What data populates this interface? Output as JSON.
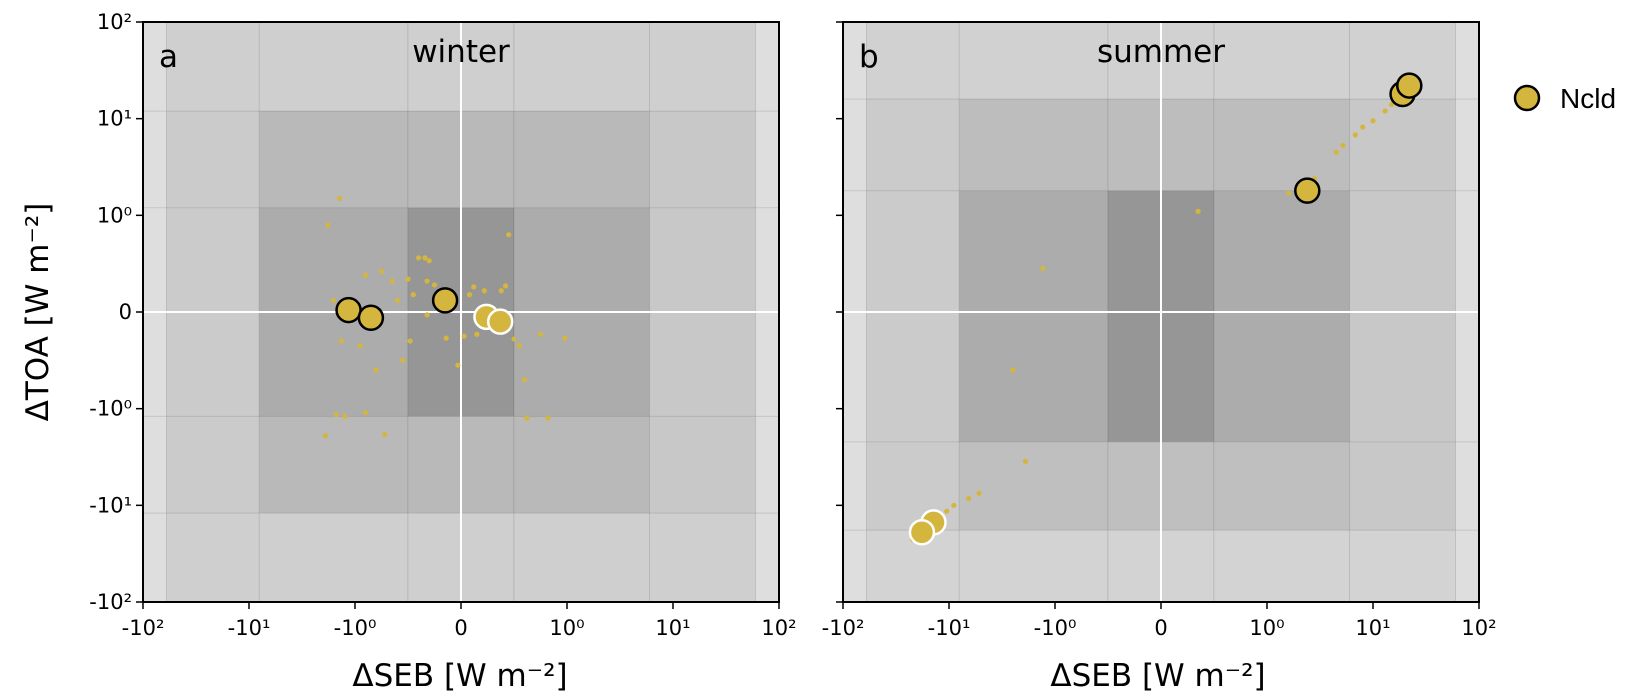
{
  "chart_data": [
    {
      "type": "scatter",
      "panel_letter": "a",
      "title": "winter",
      "xlabel": "ΔSEB [W m⁻²]",
      "ylabel": "ΔTOA [W m⁻²]",
      "xscale": "symlog",
      "yscale": "symlog",
      "xlim": [
        -100,
        100
      ],
      "ylim": [
        -100,
        100
      ],
      "x_ticks": [
        "-10²",
        "-10¹",
        "-10⁰",
        "0",
        "10⁰",
        "10¹",
        "10²"
      ],
      "y_ticks": [
        "10²",
        "10¹",
        "10⁰",
        "0",
        "-10⁰",
        "-10¹",
        "-10²"
      ],
      "background": "grey shading bands, darker toward 0",
      "zero_lines": true,
      "series": [
        {
          "name": "Ncld",
          "color": "#d4b63e",
          "large_points": [
            {
              "x": -1.15,
              "y": 0.02,
              "edge": "black"
            },
            {
              "x": -0.85,
              "y": -0.06,
              "edge": "black"
            },
            {
              "x": -0.15,
              "y": 0.12,
              "edge": "black"
            },
            {
              "x": 0.24,
              "y": -0.05,
              "edge": "white"
            },
            {
              "x": 0.37,
              "y": -0.1,
              "edge": "white"
            }
          ],
          "small_points": [
            {
              "x": -1.4,
              "y": 1.5
            },
            {
              "x": -1.8,
              "y": 0.9
            },
            {
              "x": -0.9,
              "y": 0.38
            },
            {
              "x": -0.75,
              "y": 0.42
            },
            {
              "x": -0.65,
              "y": 0.32
            },
            {
              "x": -0.5,
              "y": 0.34
            },
            {
              "x": -0.4,
              "y": 0.56
            },
            {
              "x": -0.34,
              "y": 0.56
            },
            {
              "x": -0.3,
              "y": 0.53
            },
            {
              "x": -0.32,
              "y": 0.32
            },
            {
              "x": -0.25,
              "y": 0.28
            },
            {
              "x": -0.45,
              "y": 0.18
            },
            {
              "x": -0.6,
              "y": 0.12
            },
            {
              "x": -1.6,
              "y": 0.12
            },
            {
              "x": -0.32,
              "y": -0.03
            },
            {
              "x": -0.48,
              "y": -0.3
            },
            {
              "x": -0.55,
              "y": -0.5
            },
            {
              "x": -0.8,
              "y": -0.6
            },
            {
              "x": -0.95,
              "y": -0.35
            },
            {
              "x": -1.35,
              "y": -0.3
            },
            {
              "x": -0.14,
              "y": -0.27
            },
            {
              "x": -0.03,
              "y": -0.55
            },
            {
              "x": 0.03,
              "y": -0.25
            },
            {
              "x": 0.15,
              "y": -0.23
            },
            {
              "x": 0.08,
              "y": 0.18
            },
            {
              "x": 0.12,
              "y": 0.26
            },
            {
              "x": 0.22,
              "y": 0.22
            },
            {
              "x": 0.38,
              "y": 0.22
            },
            {
              "x": 0.42,
              "y": 0.27
            },
            {
              "x": 0.45,
              "y": 0.8
            },
            {
              "x": 0.5,
              "y": -0.28
            },
            {
              "x": 0.55,
              "y": -0.35
            },
            {
              "x": 0.6,
              "y": -0.7
            },
            {
              "x": 0.75,
              "y": -0.23
            },
            {
              "x": 0.98,
              "y": -0.27
            },
            {
              "x": 0.62,
              "y": -1.25
            },
            {
              "x": 0.82,
              "y": -1.25
            },
            {
              "x": -0.9,
              "y": -1.1
            },
            {
              "x": -1.25,
              "y": -1.2
            },
            {
              "x": -1.5,
              "y": -1.15
            },
            {
              "x": -1.9,
              "y": -1.9
            },
            {
              "x": -0.72,
              "y": -1.85
            }
          ]
        }
      ]
    },
    {
      "type": "scatter",
      "panel_letter": "b",
      "title": "summer",
      "xlabel": "ΔSEB [W m⁻²]",
      "ylabel": "",
      "xscale": "symlog",
      "yscale": "symlog",
      "xlim": [
        -100,
        100
      ],
      "ylim": [
        -100,
        100
      ],
      "x_ticks": [
        "-10²",
        "-10¹",
        "-10⁰",
        "0",
        "10⁰",
        "10¹",
        "10²"
      ],
      "background": "grey shading bands, darker toward 0",
      "zero_lines": true,
      "series": [
        {
          "name": "Ncld",
          "color": "#d4b63e",
          "large_points": [
            {
              "x": 2.4,
              "y": 1.8,
              "edge": "black"
            },
            {
              "x": 19,
              "y": 18,
              "edge": "black"
            },
            {
              "x": 22,
              "y": 22,
              "edge": "black"
            },
            {
              "x": -14,
              "y": -15,
              "edge": "white"
            },
            {
              "x": -18,
              "y": -19,
              "edge": "white"
            }
          ],
          "small_points": [
            {
              "x": 0.35,
              "y": 1.1
            },
            {
              "x": -1.3,
              "y": 0.45
            },
            {
              "x": -2.5,
              "y": -0.6
            },
            {
              "x": -1.9,
              "y": -3.5
            },
            {
              "x": 1.6,
              "y": 1.7
            },
            {
              "x": 2.0,
              "y": 1.9
            },
            {
              "x": 2.8,
              "y": 2.4
            },
            {
              "x": 4.5,
              "y": 4.5
            },
            {
              "x": 5.2,
              "y": 5.3
            },
            {
              "x": 6.8,
              "y": 6.8
            },
            {
              "x": 8,
              "y": 8.2
            },
            {
              "x": 10,
              "y": 9.5
            },
            {
              "x": 13,
              "y": 12
            },
            {
              "x": 15,
              "y": 14
            },
            {
              "x": -5.2,
              "y": -7.5
            },
            {
              "x": -6.5,
              "y": -8.5
            },
            {
              "x": -9,
              "y": -10
            },
            {
              "x": -10.5,
              "y": -11.5
            },
            {
              "x": -12,
              "y": -13
            },
            {
              "x": -20,
              "y": -20
            },
            {
              "x": -21,
              "y": -21.5
            },
            {
              "x": -22,
              "y": -22.5
            }
          ]
        }
      ]
    }
  ],
  "legend": {
    "label": "Ncld",
    "color": "#d4b63e",
    "position": "right"
  }
}
